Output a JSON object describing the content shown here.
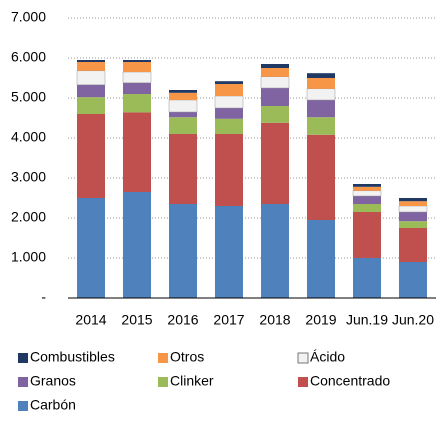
{
  "chart_data": {
    "type": "stacked_bar",
    "categories": [
      "2014",
      "2015",
      "2016",
      "2017",
      "2018",
      "2019",
      "Jun.19",
      "Jun.20"
    ],
    "series": [
      {
        "name": "Carbón",
        "color": "#4f81bd",
        "values": [
          2500,
          2650,
          2350,
          2300,
          2350,
          1950,
          1000,
          900
        ]
      },
      {
        "name": "Concentrado",
        "color": "#c0504d",
        "values": [
          2100,
          1990,
          1750,
          1800,
          2030,
          2130,
          1150,
          850
        ]
      },
      {
        "name": "Clinker",
        "color": "#9bbb59",
        "values": [
          420,
          460,
          420,
          380,
          420,
          440,
          200,
          170
        ]
      },
      {
        "name": "Granos",
        "color": "#8064a2",
        "values": [
          310,
          280,
          130,
          270,
          450,
          430,
          200,
          230
        ]
      },
      {
        "name": "Ácido",
        "color": "#f2f2f2",
        "values": [
          350,
          270,
          300,
          300,
          280,
          280,
          130,
          150
        ]
      },
      {
        "name": "Otros",
        "color": "#f79646",
        "values": [
          220,
          250,
          180,
          300,
          220,
          270,
          100,
          120
        ]
      },
      {
        "name": "Combustibles",
        "color": "#1f3864",
        "values": [
          50,
          50,
          70,
          70,
          100,
          120,
          70,
          80
        ]
      }
    ],
    "ylim": [
      0,
      7000
    ],
    "yticks": [
      {
        "value": 0,
        "label": "-"
      },
      {
        "value": 1000,
        "label": "1.000"
      },
      {
        "value": 2000,
        "label": "2.000"
      },
      {
        "value": 3000,
        "label": "3.000"
      },
      {
        "value": 4000,
        "label": "4.000"
      },
      {
        "value": 5000,
        "label": "5.000"
      },
      {
        "value": 6000,
        "label": "6.000"
      },
      {
        "value": 7000,
        "label": "7.000"
      }
    ],
    "grid": true
  }
}
